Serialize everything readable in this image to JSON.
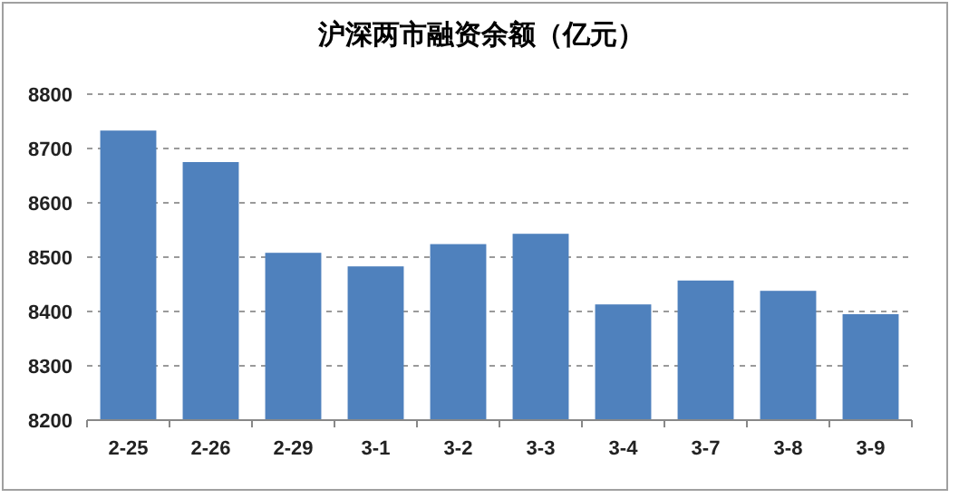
{
  "chart_data": {
    "type": "bar",
    "title": "沪深两市融资余额（亿元）",
    "categories": [
      "2-25",
      "2-26",
      "2-29",
      "3-1",
      "3-2",
      "3-3",
      "3-4",
      "3-7",
      "3-8",
      "3-9"
    ],
    "values": [
      8733,
      8675,
      8508,
      8483,
      8524,
      8543,
      8413,
      8457,
      8438,
      8395
    ],
    "color": "#4f81bd",
    "ylim": [
      8200,
      8800
    ],
    "yticks": [
      8200,
      8300,
      8400,
      8500,
      8600,
      8700,
      8800
    ],
    "grid": "y"
  }
}
